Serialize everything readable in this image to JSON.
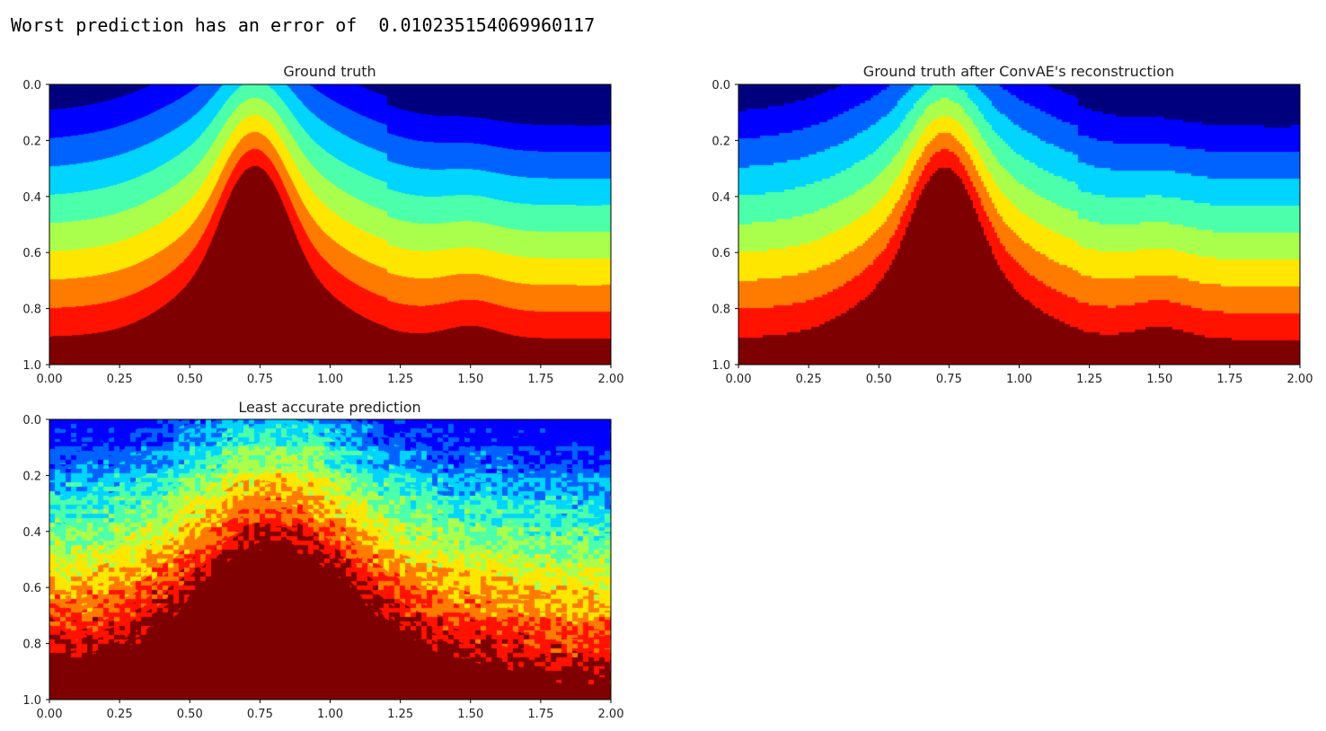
{
  "output_text": "Worst prediction has an error of  0.010235154069960117",
  "colormap": [
    "#00007f",
    "#0000ff",
    "#0063ff",
    "#00d4ff",
    "#4cffaa",
    "#aaff4c",
    "#ffe600",
    "#ff7b00",
    "#ff1300",
    "#7f0000"
  ],
  "chart_data": [
    {
      "type": "heatmap",
      "title": "Ground truth",
      "xlim": [
        0,
        2
      ],
      "ylim": [
        1,
        0
      ],
      "xticks": [
        "0.00",
        "0.25",
        "0.50",
        "0.75",
        "1.00",
        "1.25",
        "1.50",
        "1.75",
        "2.00"
      ],
      "yticks": [
        "0.0",
        "0.2",
        "0.4",
        "0.6",
        "0.8",
        "1.0"
      ],
      "levels": 10,
      "note_field": "smooth"
    },
    {
      "type": "heatmap",
      "title": "Ground truth after ConvAE's reconstruction",
      "xlim": [
        0,
        2
      ],
      "ylim": [
        1,
        0
      ],
      "xticks": [
        "0.00",
        "0.25",
        "0.50",
        "0.75",
        "1.00",
        "1.25",
        "1.50",
        "1.75",
        "2.00"
      ],
      "yticks": [
        "0.0",
        "0.2",
        "0.4",
        "0.6",
        "0.8",
        "1.0"
      ],
      "levels": 10,
      "note_field": "pixelated"
    },
    {
      "type": "heatmap",
      "title": "Least accurate prediction",
      "xlim": [
        0,
        2
      ],
      "ylim": [
        1,
        0
      ],
      "xticks": [
        "0.00",
        "0.25",
        "0.50",
        "0.75",
        "1.00",
        "1.25",
        "1.50",
        "1.75",
        "2.00"
      ],
      "yticks": [
        "0.0",
        "0.2",
        "0.4",
        "0.6",
        "0.8",
        "1.0"
      ],
      "levels": 10,
      "note_field": "noisy"
    }
  ]
}
